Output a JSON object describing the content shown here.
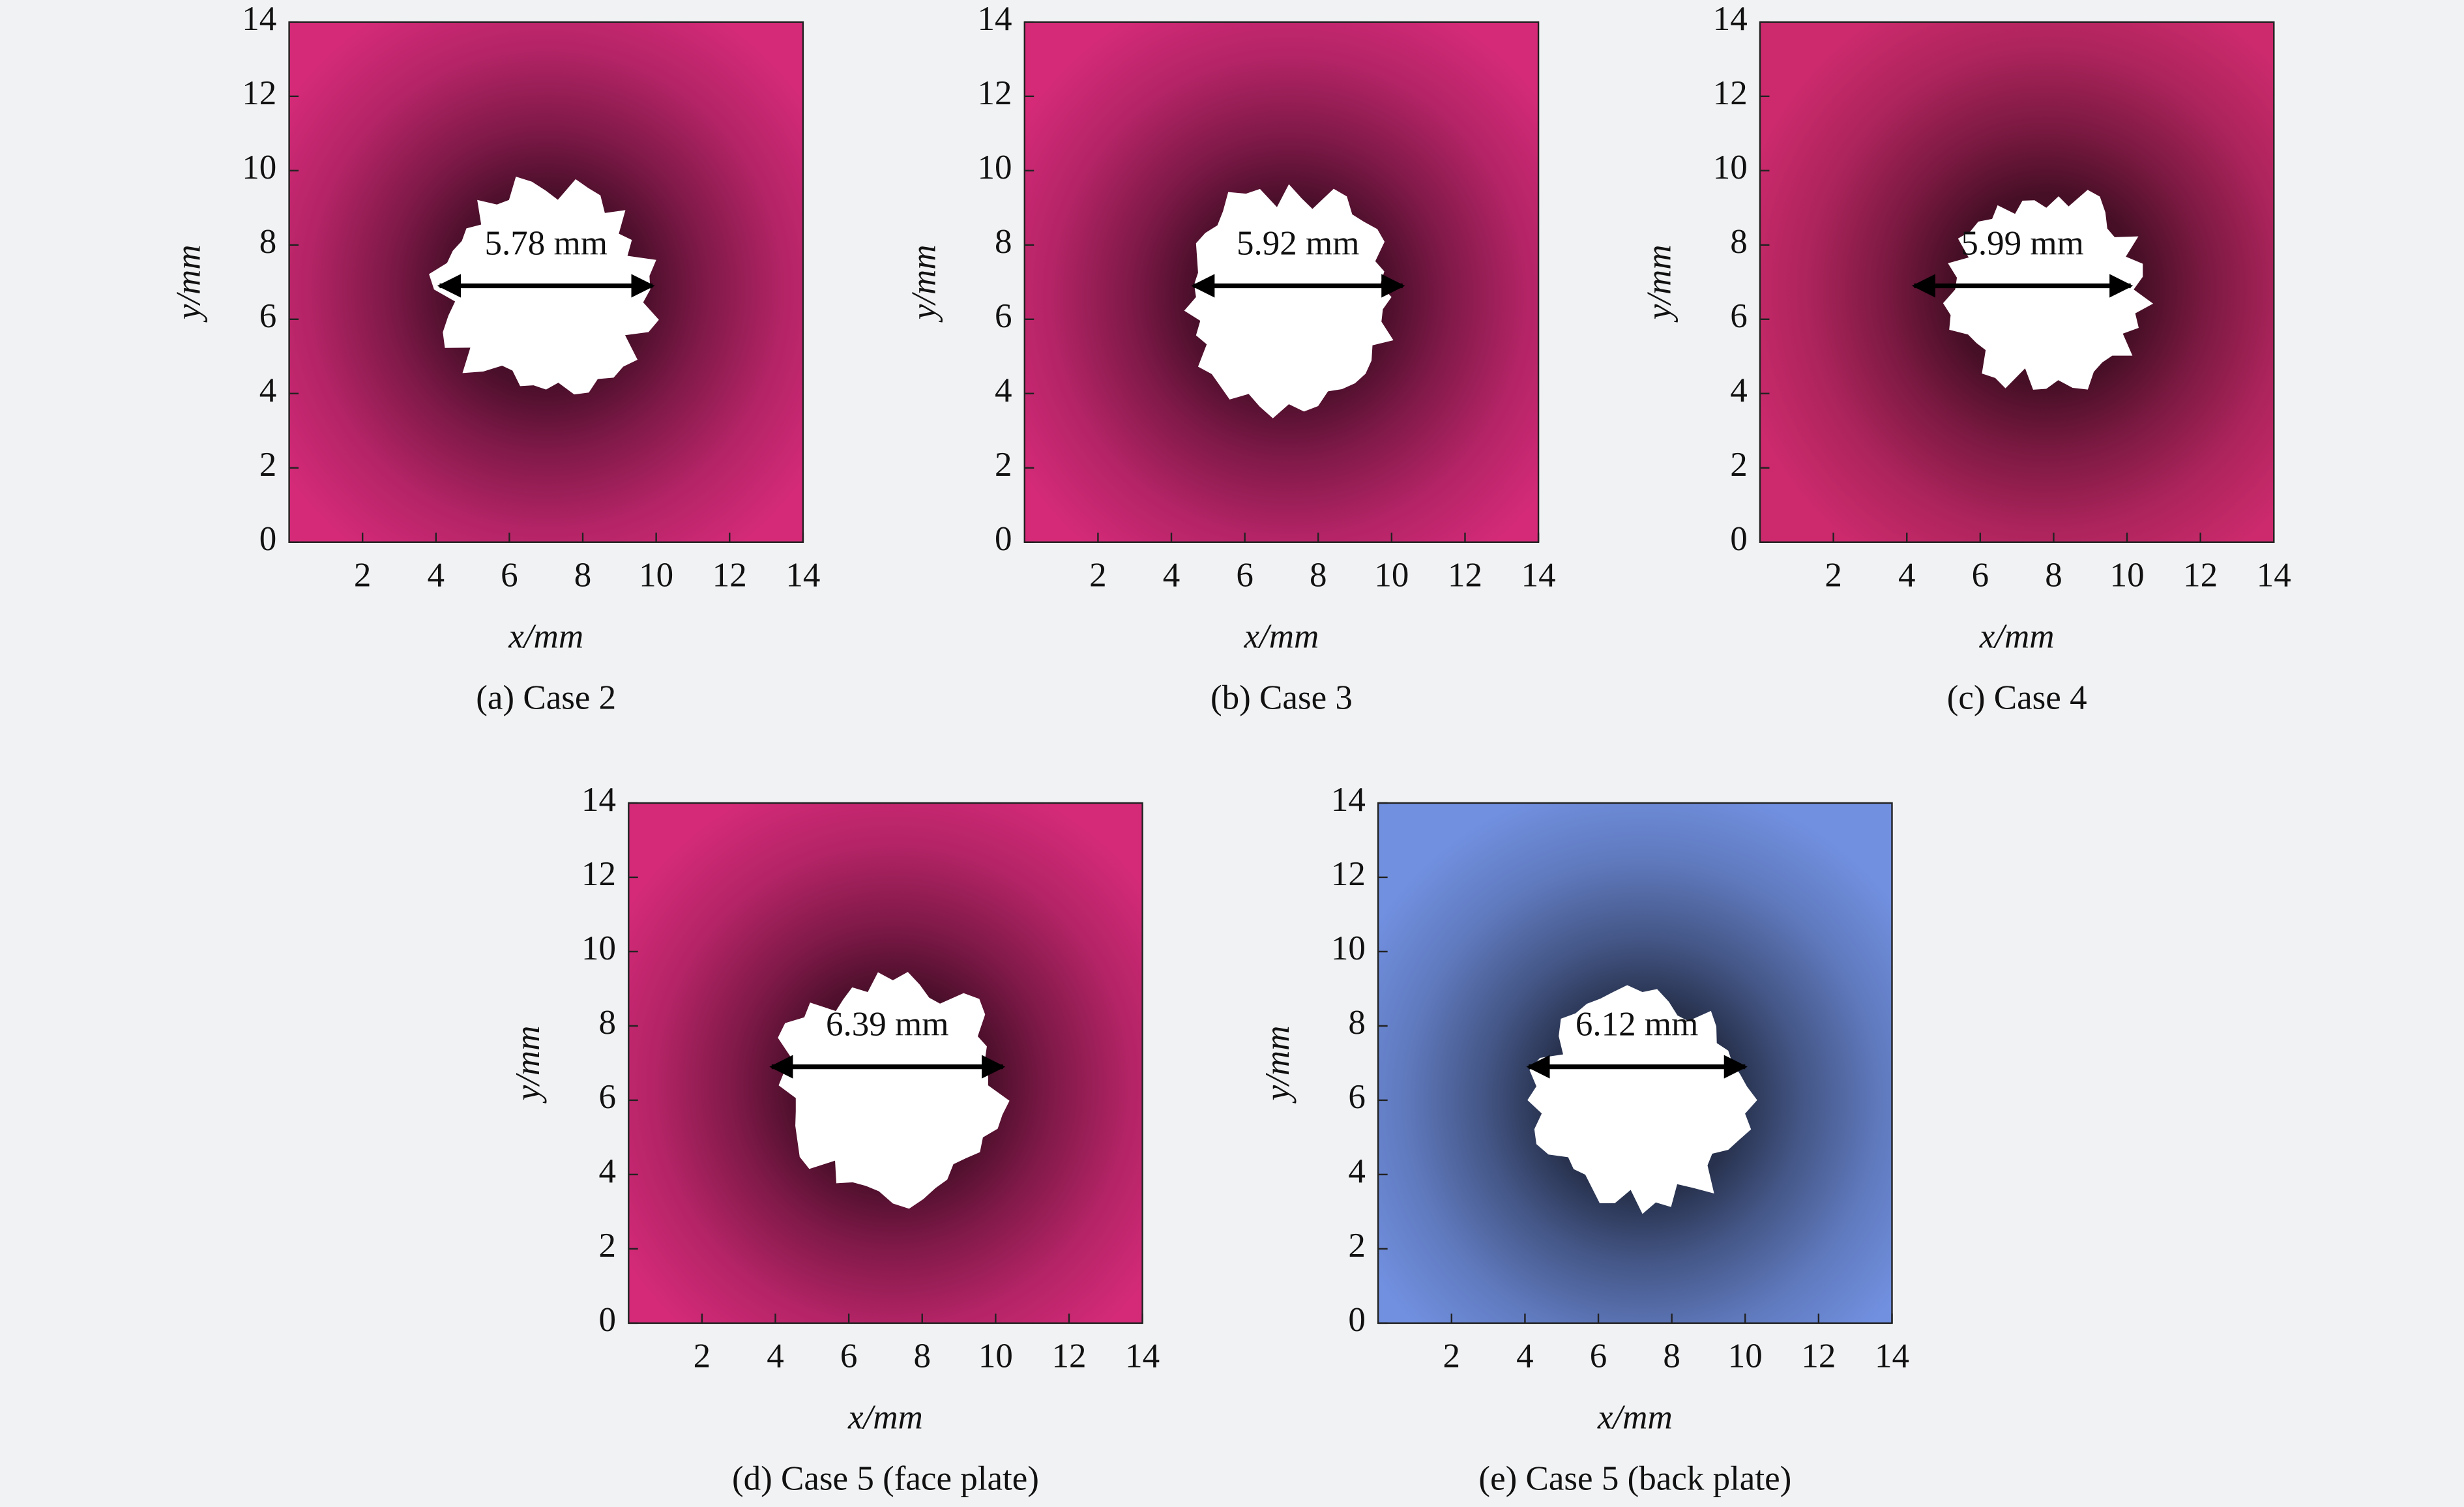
{
  "chart_data": [
    {
      "type": "damage-map",
      "caption": "(a) Case 2",
      "annotation": "5.78 mm",
      "color": "#d42a78",
      "xlabel": "x/mm",
      "ylabel": "y/mm",
      "xlim": [
        0,
        14
      ],
      "ylim": [
        0,
        14
      ],
      "xticks": [
        2,
        4,
        6,
        8,
        10,
        12,
        14
      ],
      "yticks": [
        0,
        2,
        4,
        6,
        8,
        10,
        12,
        14
      ]
    },
    {
      "type": "damage-map",
      "caption": "(b) Case 3",
      "annotation": "5.92 mm",
      "color": "#d42a78",
      "xlabel": "x/mm",
      "ylabel": "y/mm",
      "xlim": [
        0,
        14
      ],
      "ylim": [
        0,
        14
      ],
      "xticks": [
        2,
        4,
        6,
        8,
        10,
        12,
        14
      ],
      "yticks": [
        0,
        2,
        4,
        6,
        8,
        10,
        12,
        14
      ]
    },
    {
      "type": "damage-map",
      "caption": "(c) Case 4",
      "annotation": "5.99 mm",
      "color": "#cc2a6c",
      "xlabel": "x/mm",
      "ylabel": "y/mm",
      "xlim": [
        0,
        14
      ],
      "ylim": [
        0,
        14
      ],
      "xticks": [
        2,
        4,
        6,
        8,
        10,
        12,
        14
      ],
      "yticks": [
        0,
        2,
        4,
        6,
        8,
        10,
        12,
        14
      ]
    },
    {
      "type": "damage-map",
      "caption": "(d) Case 5 (face plate)",
      "annotation": "6.39 mm",
      "color": "#d42a78",
      "xlabel": "x/mm",
      "ylabel": "y/mm",
      "xlim": [
        0,
        14
      ],
      "ylim": [
        0,
        14
      ],
      "xticks": [
        2,
        4,
        6,
        8,
        10,
        12,
        14
      ],
      "yticks": [
        0,
        2,
        4,
        6,
        8,
        10,
        12,
        14
      ]
    },
    {
      "type": "damage-map",
      "caption": "(e) Case 5 (back plate)",
      "annotation": "6.12 mm",
      "color": "#7190e0",
      "xlabel": "x/mm",
      "ylabel": "y/mm",
      "xlim": [
        0,
        14
      ],
      "ylim": [
        0,
        14
      ],
      "xticks": [
        2,
        4,
        6,
        8,
        10,
        12,
        14
      ],
      "yticks": [
        0,
        2,
        4,
        6,
        8,
        10,
        12,
        14
      ]
    }
  ]
}
